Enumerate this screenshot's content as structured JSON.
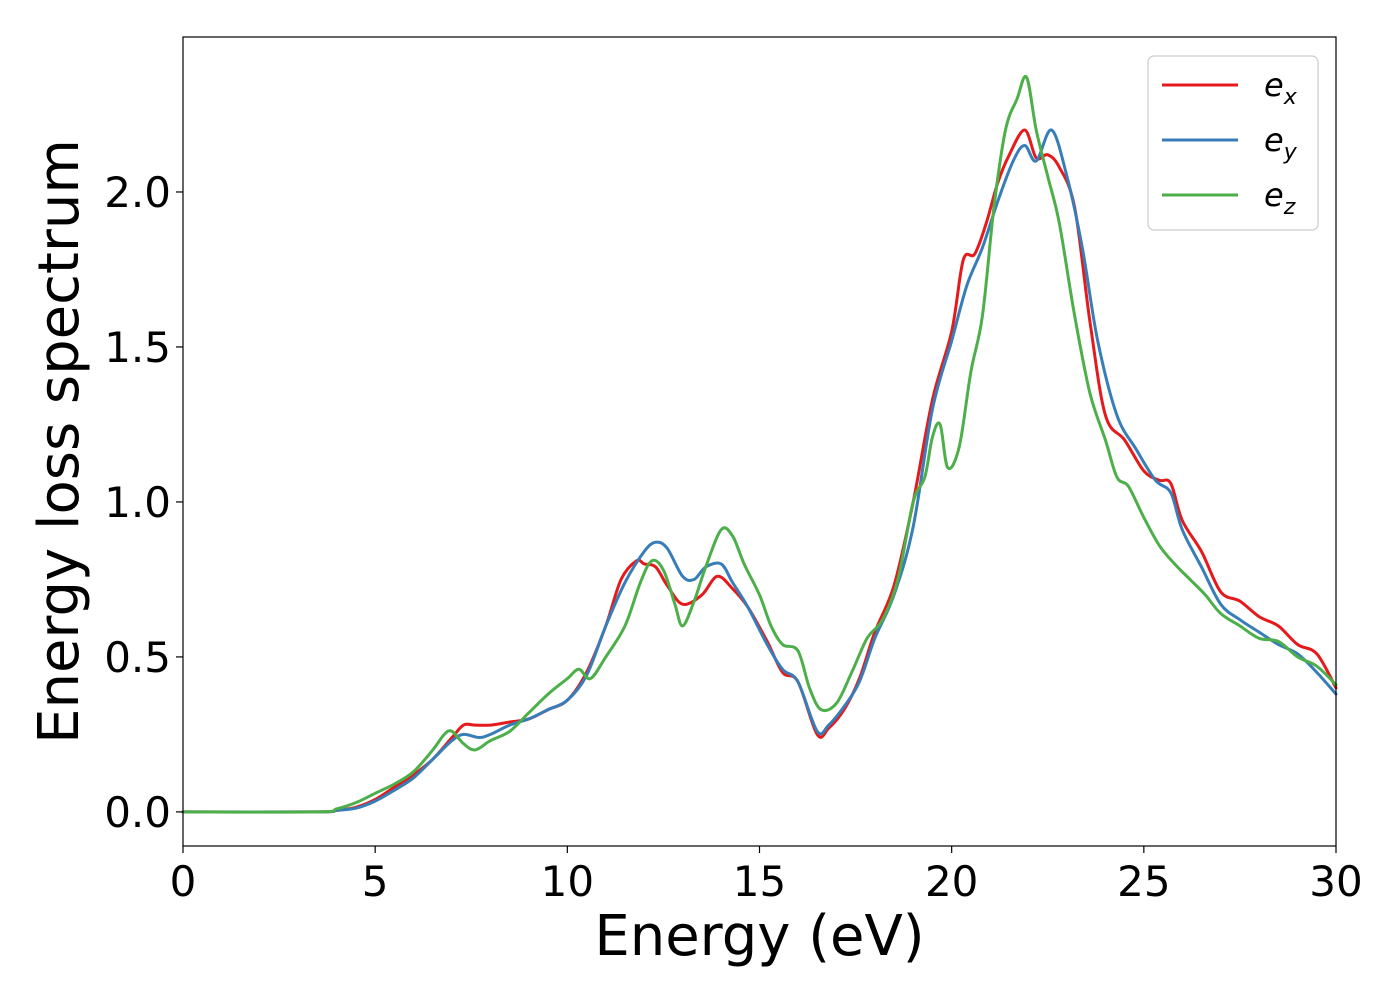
{
  "chart_data": {
    "type": "line",
    "xlabel": "Energy (eV)",
    "ylabel": "Energy loss spectrum",
    "xlim": [
      0,
      30
    ],
    "ylim": [
      -0.11,
      2.5
    ],
    "xticks": [
      "0",
      "5",
      "10",
      "15",
      "20",
      "25",
      "30"
    ],
    "yticks": [
      "0.0",
      "0.5",
      "1.0",
      "1.5",
      "2.0"
    ],
    "grid": false,
    "legend_position": "top-right",
    "series": [
      {
        "name": "e_x",
        "label_base": "e",
        "label_sub": "x",
        "color": "#e41a1c",
        "x": [
          0,
          3.5,
          4,
          4.5,
          5,
          5.5,
          6,
          6.5,
          7,
          7.3,
          7.6,
          8,
          8.5,
          9,
          9.5,
          10,
          10.5,
          11,
          11.4,
          11.8,
          12,
          12.3,
          12.6,
          13,
          13.5,
          13.9,
          14.3,
          14.7,
          15.2,
          15.6,
          16,
          16.5,
          16.8,
          17.2,
          17.6,
          18,
          18.5,
          19,
          19.5,
          20,
          20.3,
          20.6,
          20.9,
          21.2,
          21.5,
          21.9,
          22.2,
          22.5,
          22.8,
          23.2,
          23.6,
          24,
          24.5,
          25,
          25.4,
          25.7,
          26,
          26.5,
          27,
          27.5,
          28,
          28.5,
          29,
          29.5,
          30
        ],
        "y": [
          0.0,
          0.0,
          0.005,
          0.015,
          0.04,
          0.08,
          0.12,
          0.17,
          0.24,
          0.28,
          0.28,
          0.28,
          0.29,
          0.3,
          0.33,
          0.36,
          0.45,
          0.6,
          0.75,
          0.81,
          0.8,
          0.79,
          0.73,
          0.67,
          0.7,
          0.76,
          0.72,
          0.66,
          0.55,
          0.45,
          0.42,
          0.25,
          0.27,
          0.33,
          0.43,
          0.58,
          0.73,
          1.0,
          1.33,
          1.55,
          1.78,
          1.8,
          1.9,
          2.03,
          2.12,
          2.2,
          2.11,
          2.12,
          2.08,
          1.95,
          1.58,
          1.28,
          1.2,
          1.1,
          1.07,
          1.06,
          0.94,
          0.84,
          0.71,
          0.68,
          0.63,
          0.6,
          0.54,
          0.51,
          0.4
        ]
      },
      {
        "name": "e_y",
        "label_base": "e",
        "label_sub": "y",
        "color": "#377eb8",
        "x": [
          0,
          3.5,
          4,
          4.5,
          5,
          5.5,
          6,
          6.5,
          7,
          7.3,
          7.7,
          8,
          8.5,
          9,
          9.5,
          10,
          10.5,
          11,
          11.5,
          12,
          12.3,
          12.6,
          13,
          13.3,
          13.6,
          14,
          14.3,
          14.7,
          15.2,
          15.6,
          16,
          16.5,
          16.8,
          17.2,
          17.6,
          18,
          18.5,
          19,
          19.5,
          20,
          20.4,
          20.8,
          21.2,
          21.6,
          21.9,
          22.2,
          22.6,
          23,
          23.4,
          23.8,
          24.3,
          24.8,
          25.3,
          25.7,
          26,
          26.5,
          27,
          27.5,
          28,
          28.5,
          29,
          29.5,
          30
        ],
        "y": [
          0.0,
          0.0,
          0.005,
          0.012,
          0.035,
          0.07,
          0.11,
          0.17,
          0.23,
          0.25,
          0.24,
          0.25,
          0.28,
          0.3,
          0.33,
          0.36,
          0.44,
          0.6,
          0.74,
          0.84,
          0.87,
          0.85,
          0.76,
          0.75,
          0.79,
          0.8,
          0.74,
          0.66,
          0.54,
          0.46,
          0.42,
          0.26,
          0.28,
          0.34,
          0.42,
          0.56,
          0.7,
          0.92,
          1.3,
          1.52,
          1.7,
          1.82,
          1.97,
          2.1,
          2.15,
          2.1,
          2.2,
          2.05,
          1.82,
          1.52,
          1.28,
          1.17,
          1.07,
          1.03,
          0.91,
          0.79,
          0.67,
          0.62,
          0.58,
          0.54,
          0.51,
          0.45,
          0.38
        ]
      },
      {
        "name": "e_z",
        "label_base": "e",
        "label_sub": "z",
        "color": "#4daf4a",
        "x": [
          0,
          3.5,
          4,
          4.5,
          5,
          5.5,
          6,
          6.5,
          6.8,
          7,
          7.3,
          7.6,
          8,
          8.5,
          9,
          9.5,
          10,
          10.3,
          10.6,
          11,
          11.5,
          11.9,
          12.2,
          12.5,
          12.8,
          13,
          13.3,
          13.6,
          14,
          14.3,
          14.6,
          15,
          15.3,
          15.6,
          16,
          16.3,
          16.6,
          17,
          17.4,
          17.8,
          18.2,
          18.6,
          19,
          19.3,
          19.5,
          19.7,
          19.9,
          20.2,
          20.5,
          20.8,
          21.1,
          21.4,
          21.7,
          21.95,
          22.2,
          22.5,
          22.8,
          23.2,
          23.6,
          24,
          24.3,
          24.6,
          25,
          25.4,
          25.8,
          26.2,
          26.6,
          27,
          27.5,
          28,
          28.5,
          29,
          29.5,
          30
        ],
        "y": [
          0.0,
          0.0,
          0.01,
          0.03,
          0.06,
          0.09,
          0.13,
          0.2,
          0.25,
          0.26,
          0.22,
          0.2,
          0.23,
          0.26,
          0.32,
          0.38,
          0.43,
          0.46,
          0.43,
          0.5,
          0.6,
          0.74,
          0.81,
          0.78,
          0.67,
          0.6,
          0.68,
          0.79,
          0.91,
          0.89,
          0.8,
          0.7,
          0.6,
          0.54,
          0.52,
          0.4,
          0.33,
          0.35,
          0.45,
          0.56,
          0.62,
          0.75,
          1.0,
          1.08,
          1.21,
          1.25,
          1.11,
          1.18,
          1.42,
          1.6,
          1.95,
          2.2,
          2.3,
          2.37,
          2.2,
          2.05,
          1.9,
          1.6,
          1.35,
          1.2,
          1.08,
          1.05,
          0.95,
          0.86,
          0.8,
          0.75,
          0.7,
          0.64,
          0.6,
          0.56,
          0.55,
          0.5,
          0.47,
          0.41
        ]
      }
    ]
  }
}
